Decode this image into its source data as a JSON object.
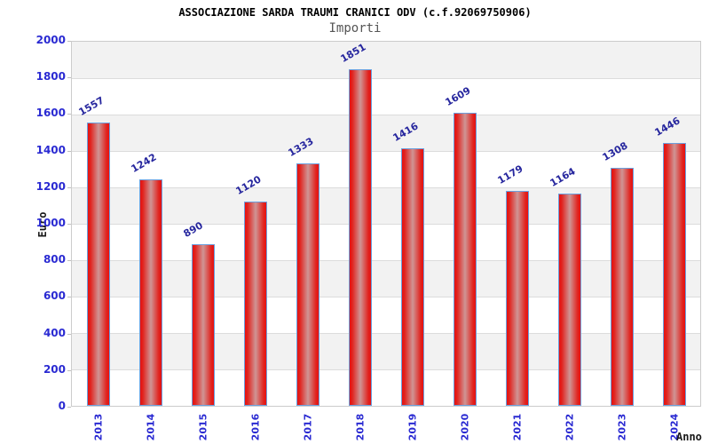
{
  "title": "ASSOCIAZIONE SARDA TRAUMI CRANICI ODV (c.f.92069750906)",
  "subtitle": "Importi",
  "colors": {
    "tick_label": "#2a2ad2",
    "value_label": "#26269e",
    "bar_edge_red": "#e61111",
    "bar_center": "#cf9595",
    "bar_border": "#6ba0de",
    "band_gray": "#f2f2f2",
    "band_white": "#ffffff",
    "gridline": "#dcdcdc",
    "plot_border": "#cccccc",
    "title_color": "#000000",
    "subtitle_color": "#555555"
  },
  "chart_data": {
    "type": "bar",
    "title": "ASSOCIAZIONE SARDA TRAUMI CRANICI ODV (c.f.92069750906)",
    "subtitle": "Importi",
    "categories": [
      "2013",
      "2014",
      "2015",
      "2016",
      "2017",
      "2018",
      "2019",
      "2020",
      "2021",
      "2022",
      "2023",
      "2024"
    ],
    "values": [
      1557,
      1242,
      890,
      1120,
      1333,
      1851,
      1416,
      1609,
      1179,
      1164,
      1308,
      1446
    ],
    "xlabel": "Anno",
    "ylabel": "Euro",
    "ylim": [
      0,
      2000
    ],
    "ytick_step": 200,
    "grid": "alternating horizontal bands, gray/white, gridline every 200",
    "legend": "none",
    "value_label_style": "rotated -30deg above each bar",
    "category_label_style": "rotated -90deg below axis"
  }
}
